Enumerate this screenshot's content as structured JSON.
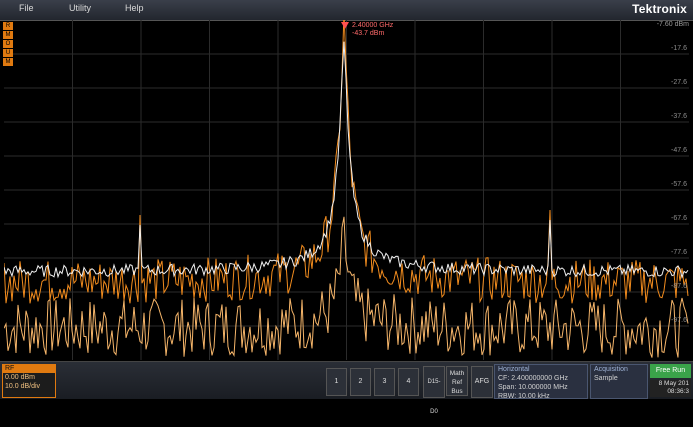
{
  "menu": {
    "file": "File",
    "utility": "Utility",
    "help": "Help"
  },
  "brand": "Tektronix",
  "ref_level": "-7.60 dBm",
  "left_badges": [
    "R",
    "M",
    "O",
    "U",
    "M"
  ],
  "marker": {
    "freq": "2.40000 GHz",
    "amp": "-43.7 dBm"
  },
  "y_labels": [
    "-17.6",
    "-27.6",
    "-37.6",
    "-47.6",
    "-57.6",
    "-67.6",
    "-77.6",
    "-87.6",
    "-97.6"
  ],
  "rf": {
    "title": "RF",
    "ref": "0.00 dBm",
    "scale": "10.0 dB/div"
  },
  "channels": [
    "1",
    "2",
    "3",
    "4"
  ],
  "channel_colors": [
    "#e8e04a",
    "#4ab8e8",
    "#e84ab8",
    "#4ae87a"
  ],
  "buttons": {
    "digital": "D15-D0",
    "math": "Math Ref Bus",
    "afg": "AFG"
  },
  "horizontal": {
    "title": "Horizontal",
    "cf": "CF:    2.400000000 GHz",
    "span": "Span: 10.000000 MHz",
    "rbw": "RBW:  10.00 kHz"
  },
  "acquisition": {
    "title": "Acquisition",
    "mode": "Sample"
  },
  "run": "Free Run",
  "date": "8 May 201",
  "time": "08:36:3",
  "colors": {
    "trace_orange": "#f28c1e",
    "trace_light": "#f5b56a",
    "trace_white": "#f0f0f0",
    "marker": "#ff6a6a"
  }
}
